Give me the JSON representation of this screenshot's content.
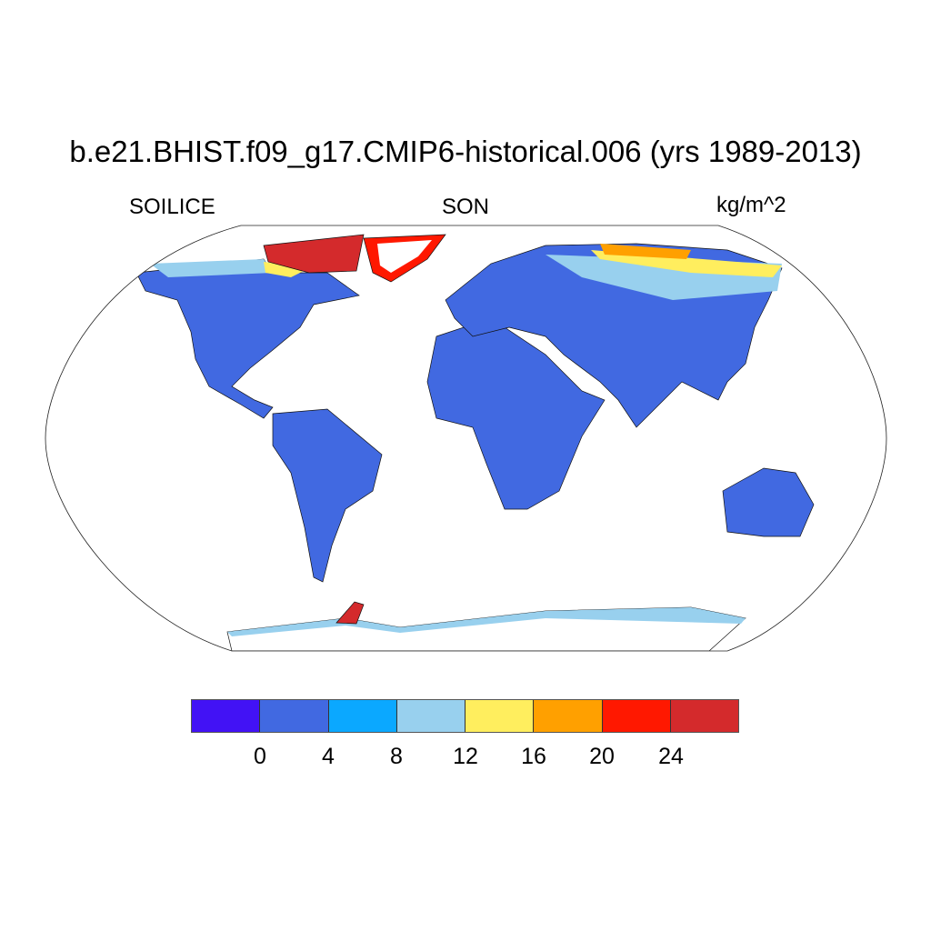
{
  "title": "b.e21.BHIST.f09_g17.CMIP6-historical.006 (yrs 1989-2013)",
  "left_label": "SOILICE",
  "center_label": "SON",
  "right_label": "kg/m^2",
  "colorbar": {
    "colors": [
      "#4212F5",
      "#4169E1",
      "#0BA8FF",
      "#98D0EE",
      "#FFEE5E",
      "#FFA000",
      "#FF1800",
      "#D42A2C"
    ],
    "labels": [
      "0",
      "4",
      "8",
      "12",
      "16",
      "20",
      "24"
    ]
  }
}
